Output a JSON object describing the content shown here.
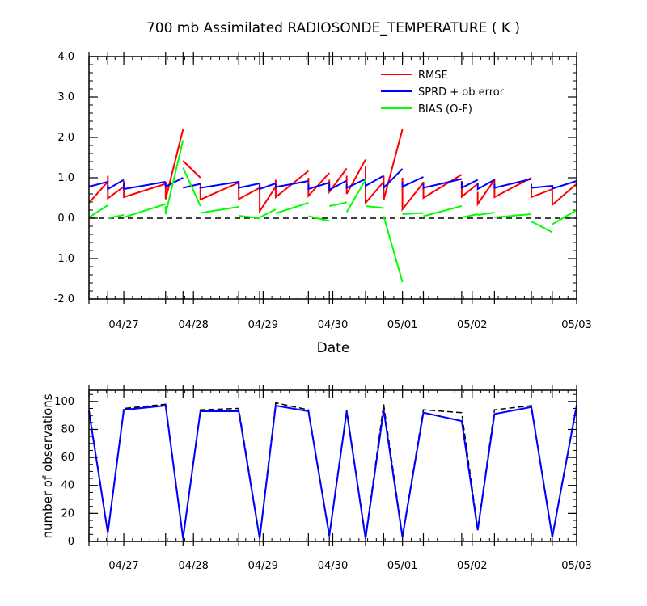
{
  "page": {
    "background": "#ffffff"
  },
  "colors": {
    "rmse": "#ff0000",
    "sprd": "#0000ff",
    "bias": "#00ff00",
    "obs_used": "#0000ff",
    "obs_possible": "#000000",
    "zero_line": "#000000",
    "axis": "#000000"
  },
  "chart_data": [
    {
      "type": "line",
      "title": "700 mb Assimilated RADIOSONDE_TEMPERATURE ( K )",
      "xlabel": "Date",
      "ylabel": "",
      "xlim": [
        0,
        7
      ],
      "ylim": [
        -2.0,
        4.0
      ],
      "grid": false,
      "legend_position": "top-right",
      "x_tick_labels": [
        "04/27",
        "04/28",
        "04/29",
        "04/30",
        "05/01",
        "05/02",
        "05/03"
      ],
      "x_tick_positions": [
        0.5,
        1.5,
        2.5,
        3.5,
        4.5,
        5.5,
        7.0
      ],
      "y_tick_labels": [
        "4.0",
        "3.0",
        "2.0",
        "1.0",
        "0.0",
        "-1.0",
        "-2.0"
      ],
      "y_tick_values": [
        4.0,
        3.0,
        2.0,
        1.0,
        0.0,
        -1.0,
        -2.0
      ],
      "zero_line": 0.0,
      "series": [
        {
          "name": "RMSE",
          "color_key": "rmse",
          "segments": [
            [
              [
                0.0,
                0.38
              ],
              [
                0.27,
                0.9
              ]
            ],
            [
              [
                0.27,
                1.05
              ],
              [
                0.27,
                0.49
              ],
              [
                0.5,
                0.78
              ]
            ],
            [
              [
                0.5,
                0.92
              ],
              [
                0.5,
                0.52
              ],
              [
                1.1,
                0.85
              ]
            ],
            [
              [
                1.1,
                0.9
              ],
              [
                1.1,
                0.47
              ],
              [
                1.35,
                2.2
              ]
            ],
            [
              [
                1.35,
                1.42
              ],
              [
                1.6,
                1.0
              ]
            ],
            [
              [
                1.6,
                0.88
              ],
              [
                1.6,
                0.46
              ],
              [
                2.15,
                0.88
              ]
            ],
            [
              [
                2.15,
                0.92
              ],
              [
                2.15,
                0.47
              ],
              [
                2.45,
                0.75
              ]
            ],
            [
              [
                2.45,
                0.85
              ],
              [
                2.45,
                0.17
              ],
              [
                2.68,
                0.78
              ]
            ],
            [
              [
                2.68,
                0.95
              ],
              [
                2.68,
                0.52
              ],
              [
                3.15,
                1.17
              ]
            ],
            [
              [
                3.15,
                1.0
              ],
              [
                3.15,
                0.55
              ],
              [
                3.45,
                1.12
              ]
            ],
            [
              [
                3.45,
                0.95
              ],
              [
                3.45,
                0.65
              ],
              [
                3.7,
                1.23
              ]
            ],
            [
              [
                3.7,
                1.05
              ],
              [
                3.7,
                0.6
              ],
              [
                3.97,
                1.45
              ]
            ],
            [
              [
                3.97,
                1.3
              ],
              [
                3.97,
                0.38
              ],
              [
                4.23,
                0.9
              ]
            ],
            [
              [
                4.23,
                1.05
              ],
              [
                4.23,
                0.45
              ],
              [
                4.5,
                2.2
              ]
            ],
            [
              [
                4.5,
                1.0
              ],
              [
                4.5,
                0.22
              ],
              [
                4.8,
                0.88
              ]
            ],
            [
              [
                4.8,
                0.9
              ],
              [
                4.8,
                0.5
              ],
              [
                5.35,
                1.08
              ]
            ],
            [
              [
                5.35,
                0.92
              ],
              [
                5.35,
                0.53
              ],
              [
                5.58,
                0.85
              ]
            ],
            [
              [
                5.58,
                0.65
              ],
              [
                5.58,
                0.35
              ],
              [
                5.82,
                0.95
              ]
            ],
            [
              [
                5.82,
                0.97
              ],
              [
                5.82,
                0.52
              ],
              [
                6.35,
                1.0
              ]
            ],
            [
              [
                6.35,
                0.85
              ],
              [
                6.35,
                0.52
              ],
              [
                6.65,
                0.72
              ]
            ],
            [
              [
                6.65,
                0.82
              ],
              [
                6.65,
                0.33
              ],
              [
                7.0,
                0.85
              ]
            ]
          ]
        },
        {
          "name": "SPRD + ob error",
          "color_key": "sprd",
          "segments": [
            [
              [
                0.0,
                0.78
              ],
              [
                0.27,
                0.9
              ]
            ],
            [
              [
                0.27,
                0.82
              ],
              [
                0.27,
                0.72
              ],
              [
                0.5,
                0.95
              ]
            ],
            [
              [
                0.5,
                0.88
              ],
              [
                0.5,
                0.72
              ],
              [
                1.1,
                0.9
              ]
            ],
            [
              [
                1.1,
                0.88
              ],
              [
                1.1,
                0.78
              ],
              [
                1.35,
                1.0
              ]
            ],
            [
              [
                1.35,
                0.75
              ],
              [
                1.6,
                0.85
              ]
            ],
            [
              [
                1.6,
                0.78
              ],
              [
                1.6,
                0.75
              ],
              [
                2.15,
                0.9
              ]
            ],
            [
              [
                2.15,
                0.88
              ],
              [
                2.15,
                0.75
              ],
              [
                2.45,
                0.86
              ]
            ],
            [
              [
                2.45,
                0.82
              ],
              [
                2.45,
                0.72
              ],
              [
                2.68,
                0.86
              ]
            ],
            [
              [
                2.68,
                0.85
              ],
              [
                2.68,
                0.77
              ],
              [
                3.15,
                0.92
              ]
            ],
            [
              [
                3.15,
                0.85
              ],
              [
                3.15,
                0.72
              ],
              [
                3.45,
                0.88
              ]
            ],
            [
              [
                3.45,
                0.85
              ],
              [
                3.45,
                0.7
              ],
              [
                3.7,
                0.93
              ]
            ],
            [
              [
                3.7,
                0.85
              ],
              [
                3.7,
                0.75
              ],
              [
                3.97,
                0.97
              ]
            ],
            [
              [
                3.97,
                0.92
              ],
              [
                3.97,
                0.8
              ],
              [
                4.23,
                1.05
              ]
            ],
            [
              [
                4.23,
                0.85
              ],
              [
                4.23,
                0.75
              ],
              [
                4.5,
                1.22
              ]
            ],
            [
              [
                4.5,
                0.9
              ],
              [
                4.5,
                0.78
              ],
              [
                4.8,
                1.02
              ]
            ],
            [
              [
                4.8,
                0.85
              ],
              [
                4.8,
                0.75
              ],
              [
                5.35,
                0.97
              ]
            ],
            [
              [
                5.35,
                0.9
              ],
              [
                5.35,
                0.75
              ],
              [
                5.58,
                0.95
              ]
            ],
            [
              [
                5.58,
                0.88
              ],
              [
                5.58,
                0.72
              ],
              [
                5.82,
                0.95
              ]
            ],
            [
              [
                5.82,
                0.85
              ],
              [
                5.82,
                0.75
              ],
              [
                6.35,
                0.97
              ]
            ],
            [
              [
                6.35,
                0.85
              ],
              [
                6.35,
                0.75
              ],
              [
                6.65,
                0.8
              ]
            ],
            [
              [
                6.65,
                0.82
              ],
              [
                6.65,
                0.73
              ],
              [
                7.0,
                0.92
              ]
            ]
          ]
        },
        {
          "name": "BIAS (O-F)",
          "color_key": "bias",
          "segments": [
            [
              [
                0.0,
                0.02
              ],
              [
                0.27,
                0.32
              ]
            ],
            [
              [
                0.27,
                0.0
              ],
              [
                0.5,
                0.08
              ]
            ],
            [
              [
                0.5,
                0.02
              ],
              [
                1.1,
                0.35
              ]
            ],
            [
              [
                1.1,
                0.3
              ],
              [
                1.1,
                0.1
              ],
              [
                1.35,
                1.93
              ]
            ],
            [
              [
                1.35,
                1.25
              ],
              [
                1.6,
                0.3
              ]
            ],
            [
              [
                1.6,
                0.13
              ],
              [
                2.15,
                0.28
              ]
            ],
            [
              [
                2.15,
                0.06
              ],
              [
                2.45,
                0.0
              ]
            ],
            [
              [
                2.45,
                0.02
              ],
              [
                2.68,
                0.22
              ]
            ],
            [
              [
                2.68,
                0.12
              ],
              [
                3.15,
                0.38
              ]
            ],
            [
              [
                3.15,
                0.05
              ],
              [
                3.45,
                -0.07
              ]
            ],
            [
              [
                3.45,
                0.3
              ],
              [
                3.7,
                0.39
              ]
            ],
            [
              [
                3.7,
                0.15
              ],
              [
                3.97,
                0.95
              ]
            ],
            [
              [
                3.97,
                0.3
              ],
              [
                4.23,
                0.25
              ]
            ],
            [
              [
                4.23,
                0.05
              ],
              [
                4.5,
                -1.58
              ]
            ],
            [
              [
                4.5,
                0.1
              ],
              [
                4.8,
                0.13
              ]
            ],
            [
              [
                4.8,
                0.05
              ],
              [
                5.35,
                0.3
              ]
            ],
            [
              [
                5.35,
                0.02
              ],
              [
                5.58,
                0.1
              ]
            ],
            [
              [
                5.58,
                0.08
              ],
              [
                5.82,
                0.14
              ]
            ],
            [
              [
                5.82,
                0.02
              ],
              [
                6.35,
                0.1
              ]
            ],
            [
              [
                6.35,
                -0.08
              ],
              [
                6.65,
                -0.35
              ]
            ],
            [
              [
                6.65,
                -0.15
              ],
              [
                7.0,
                0.2
              ]
            ]
          ]
        }
      ]
    },
    {
      "type": "line",
      "title": "",
      "xlabel": "",
      "ylabel": "number of observations",
      "xlim": [
        0,
        7
      ],
      "ylim": [
        0,
        108
      ],
      "grid": false,
      "x_tick_labels": [
        "04/27",
        "04/28",
        "04/29",
        "04/30",
        "05/01",
        "05/02",
        "05/03"
      ],
      "x_tick_positions": [
        0.5,
        1.5,
        2.5,
        3.5,
        4.5,
        5.5,
        7.0
      ],
      "y_tick_labels": [
        "100",
        "80",
        "60",
        "40",
        "20",
        "0"
      ],
      "y_tick_values": [
        100,
        80,
        60,
        40,
        20,
        0
      ],
      "series": [
        {
          "name": "",
          "color_key": "obs_possible",
          "dashed": true,
          "x": [
            0.0,
            0.27,
            0.5,
            1.1,
            1.35,
            1.6,
            2.15,
            2.45,
            2.68,
            3.15,
            3.45,
            3.7,
            3.97,
            4.23,
            4.5,
            4.8,
            5.35,
            5.58,
            5.82,
            6.35,
            6.65,
            7.0
          ],
          "y": [
            94,
            7,
            95,
            98,
            3,
            94,
            95,
            3,
            99,
            94,
            5,
            94,
            3,
            98,
            4,
            94,
            92,
            9,
            94,
            97,
            4,
            98
          ]
        },
        {
          "name": "",
          "color_key": "obs_used",
          "dashed": false,
          "x": [
            0.0,
            0.27,
            0.5,
            1.1,
            1.35,
            1.6,
            2.15,
            2.45,
            2.68,
            3.15,
            3.45,
            3.7,
            3.97,
            4.23,
            4.5,
            4.8,
            5.35,
            5.58,
            5.82,
            6.35,
            6.65,
            7.0
          ],
          "y": [
            93,
            6,
            94,
            97,
            2,
            93,
            93,
            2,
            97,
            93,
            4,
            93,
            2,
            94,
            3,
            92,
            86,
            8,
            91,
            96,
            3,
            97
          ]
        }
      ]
    }
  ]
}
